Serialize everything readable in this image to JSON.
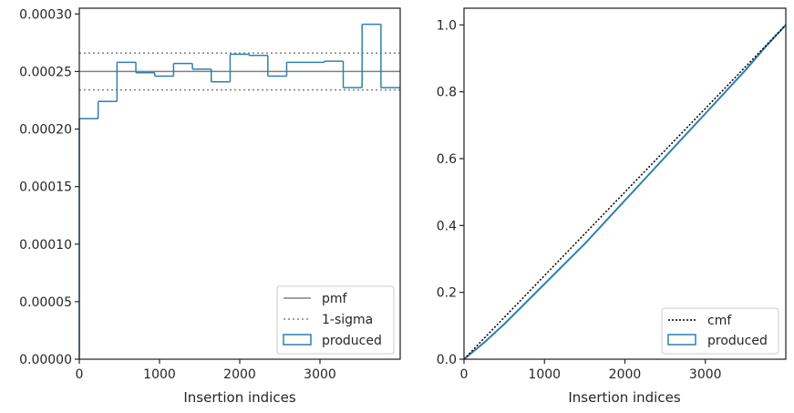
{
  "chart_data": [
    {
      "type": "histogram-step",
      "xlabel": "Insertion indices",
      "ylabel": "",
      "xlim": [
        0,
        4000
      ],
      "ylim": [
        0,
        0.000305
      ],
      "xticks": [
        0,
        1000,
        2000,
        3000
      ],
      "yticks": [
        0,
        5e-05,
        0.0001,
        0.00015,
        0.0002,
        0.00025,
        0.0003
      ],
      "xtick_labels": [
        "0",
        "1000",
        "2000",
        "3000"
      ],
      "ytick_labels": [
        "0.00000",
        "0.00005",
        "0.00010",
        "0.00015",
        "0.00020",
        "0.00025",
        "0.00030"
      ],
      "bin_edges": [
        0,
        235,
        470,
        705,
        940,
        1175,
        1410,
        1645,
        1880,
        2115,
        2350,
        2585,
        2820,
        3055,
        3290,
        3525,
        3760,
        4000
      ],
      "bin_values": [
        0.000209,
        0.000224,
        0.000258,
        0.000249,
        0.000246,
        0.000257,
        0.000252,
        0.000241,
        0.000265,
        0.000264,
        0.000246,
        0.000258,
        0.000258,
        0.000259,
        0.000236,
        0.000291,
        0.000236
      ],
      "pmf": 0.00025,
      "sigma_band": [
        0.000234,
        0.000266
      ],
      "legend": {
        "placement": "lower-right",
        "entries": [
          "pmf",
          "1-sigma",
          "produced"
        ]
      },
      "colors": {
        "produced": "#2f7fb2",
        "pmf": "#808080",
        "sigma": "#808080"
      }
    },
    {
      "type": "cumulative-step",
      "xlabel": "Insertion indices",
      "ylabel": "",
      "xlim": [
        0,
        4000
      ],
      "ylim": [
        0,
        1.05
      ],
      "xticks": [
        0,
        1000,
        2000,
        3000
      ],
      "yticks": [
        0,
        0.2,
        0.4,
        0.6,
        0.8,
        1.0
      ],
      "xtick_labels": [
        "0",
        "1000",
        "2000",
        "3000"
      ],
      "ytick_labels": [
        "0.0",
        "0.2",
        "0.4",
        "0.6",
        "0.8",
        "1.0"
      ],
      "cmf": [
        [
          0,
          0
        ],
        [
          4000,
          1.0
        ]
      ],
      "produced": [
        [
          0,
          0
        ],
        [
          250,
          0.05
        ],
        [
          500,
          0.105
        ],
        [
          750,
          0.165
        ],
        [
          1000,
          0.225
        ],
        [
          1250,
          0.285
        ],
        [
          1500,
          0.345
        ],
        [
          1750,
          0.41
        ],
        [
          2000,
          0.475
        ],
        [
          2250,
          0.54
        ],
        [
          2500,
          0.605
        ],
        [
          2750,
          0.67
        ],
        [
          3000,
          0.735
        ],
        [
          3250,
          0.8
        ],
        [
          3500,
          0.865
        ],
        [
          3750,
          0.935
        ],
        [
          4000,
          1.0
        ]
      ],
      "legend": {
        "placement": "lower-right",
        "entries": [
          "cmf",
          "produced"
        ]
      },
      "colors": {
        "produced": "#2f7fb2",
        "cmf": "#000000"
      }
    }
  ]
}
